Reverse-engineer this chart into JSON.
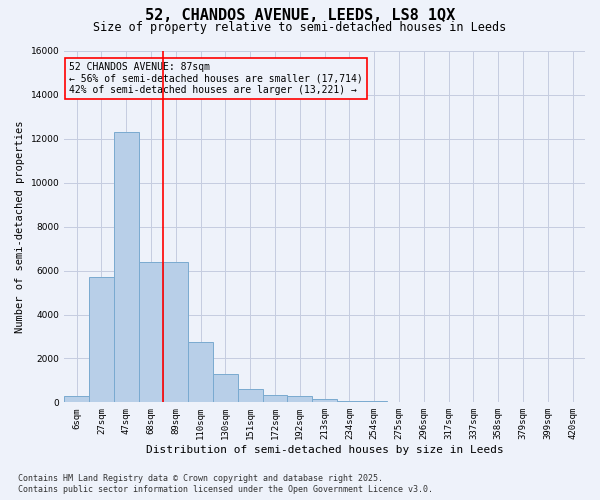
{
  "title": "52, CHANDOS AVENUE, LEEDS, LS8 1QX",
  "subtitle": "Size of property relative to semi-detached houses in Leeds",
  "xlabel": "Distribution of semi-detached houses by size in Leeds",
  "ylabel": "Number of semi-detached properties",
  "bar_color": "#b8cfe8",
  "bar_edge_color": "#7aaad0",
  "categories": [
    "6sqm",
    "27sqm",
    "47sqm",
    "68sqm",
    "89sqm",
    "110sqm",
    "130sqm",
    "151sqm",
    "172sqm",
    "192sqm",
    "213sqm",
    "234sqm",
    "254sqm",
    "275sqm",
    "296sqm",
    "317sqm",
    "337sqm",
    "358sqm",
    "379sqm",
    "399sqm",
    "420sqm"
  ],
  "values": [
    300,
    5700,
    12300,
    6400,
    6400,
    2750,
    1300,
    600,
    330,
    280,
    130,
    70,
    45,
    25,
    15,
    8,
    5,
    4,
    4,
    3,
    3
  ],
  "ylim": [
    0,
    16000
  ],
  "yticks": [
    0,
    2000,
    4000,
    6000,
    8000,
    10000,
    12000,
    14000,
    16000
  ],
  "property_line_bin": 4,
  "property_size": "87sqm",
  "pct_smaller": 56,
  "count_smaller": 17714,
  "pct_larger": 42,
  "count_larger": 13221,
  "annotation_title": "52 CHANDOS AVENUE: 87sqm",
  "footer_line1": "Contains HM Land Registry data © Crown copyright and database right 2025.",
  "footer_line2": "Contains public sector information licensed under the Open Government Licence v3.0.",
  "background_color": "#eef2fa",
  "grid_color": "#c5cce0",
  "title_fontsize": 11,
  "subtitle_fontsize": 8.5,
  "xlabel_fontsize": 8,
  "ylabel_fontsize": 7.5,
  "tick_fontsize": 6.5,
  "annot_fontsize": 7,
  "footer_fontsize": 6
}
